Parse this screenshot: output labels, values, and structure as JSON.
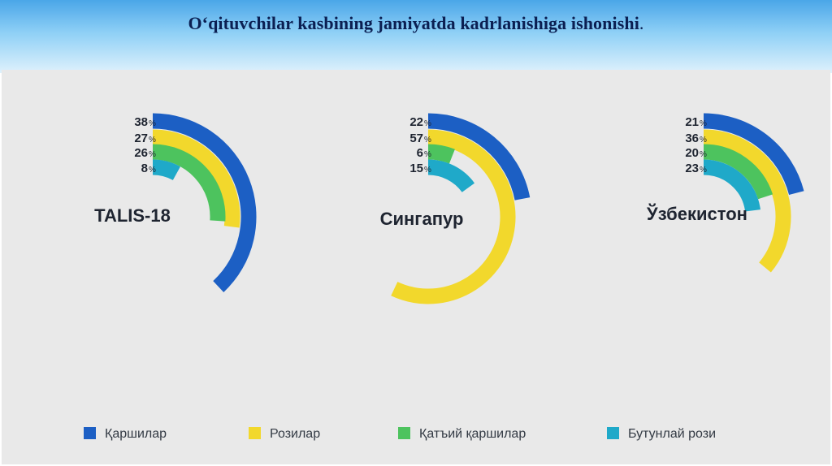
{
  "title": {
    "text": "Oʻqituvchilar kasbining jamiyatda kadrlanishiga ishonishi",
    "trailing": "."
  },
  "colors": {
    "qarshilar": "#1c5fc4",
    "rozilar": "#f2d82c",
    "qatiy_qarshilar": "#4dc35e",
    "butunlay_rozi": "#1fa9c9",
    "panel_bg": "#e9e9e9",
    "text": "#1e2430"
  },
  "legend": [
    {
      "label": "Қаршилар",
      "color": "#1c5fc4"
    },
    {
      "label": "Розилар",
      "color": "#f2d82c"
    },
    {
      "label": "Қатъий қаршилар",
      "color": "#4dc35e"
    },
    {
      "label": "Бутунлай рози",
      "color": "#1fa9c9"
    }
  ],
  "chart_data": [
    {
      "type": "radial-bar",
      "title": "TALIS-18",
      "series": [
        "Қаршилар",
        "Розилар",
        "Қатъий қаршилар",
        "Бутунлай рози"
      ],
      "values": [
        38,
        27,
        26,
        8
      ],
      "labels": [
        "38",
        "27",
        "26",
        "8"
      ],
      "unit": "%"
    },
    {
      "type": "radial-bar",
      "title": "Сингапур",
      "series": [
        "Қаршилар",
        "Розилар",
        "Қатъий қаршилар",
        "Бутунлай рози"
      ],
      "values": [
        22,
        57,
        6,
        15
      ],
      "labels": [
        "22",
        "57",
        "6",
        "15"
      ],
      "unit": "%"
    },
    {
      "type": "radial-bar",
      "title": "Ўзбекистон",
      "series": [
        "Қаршилар",
        "Розилар",
        "Қатъий қаршилар",
        "Бутунлай рози"
      ],
      "values": [
        21,
        36,
        20,
        23
      ],
      "labels": [
        "21",
        "36",
        "20",
        "23"
      ],
      "unit": "%"
    }
  ]
}
